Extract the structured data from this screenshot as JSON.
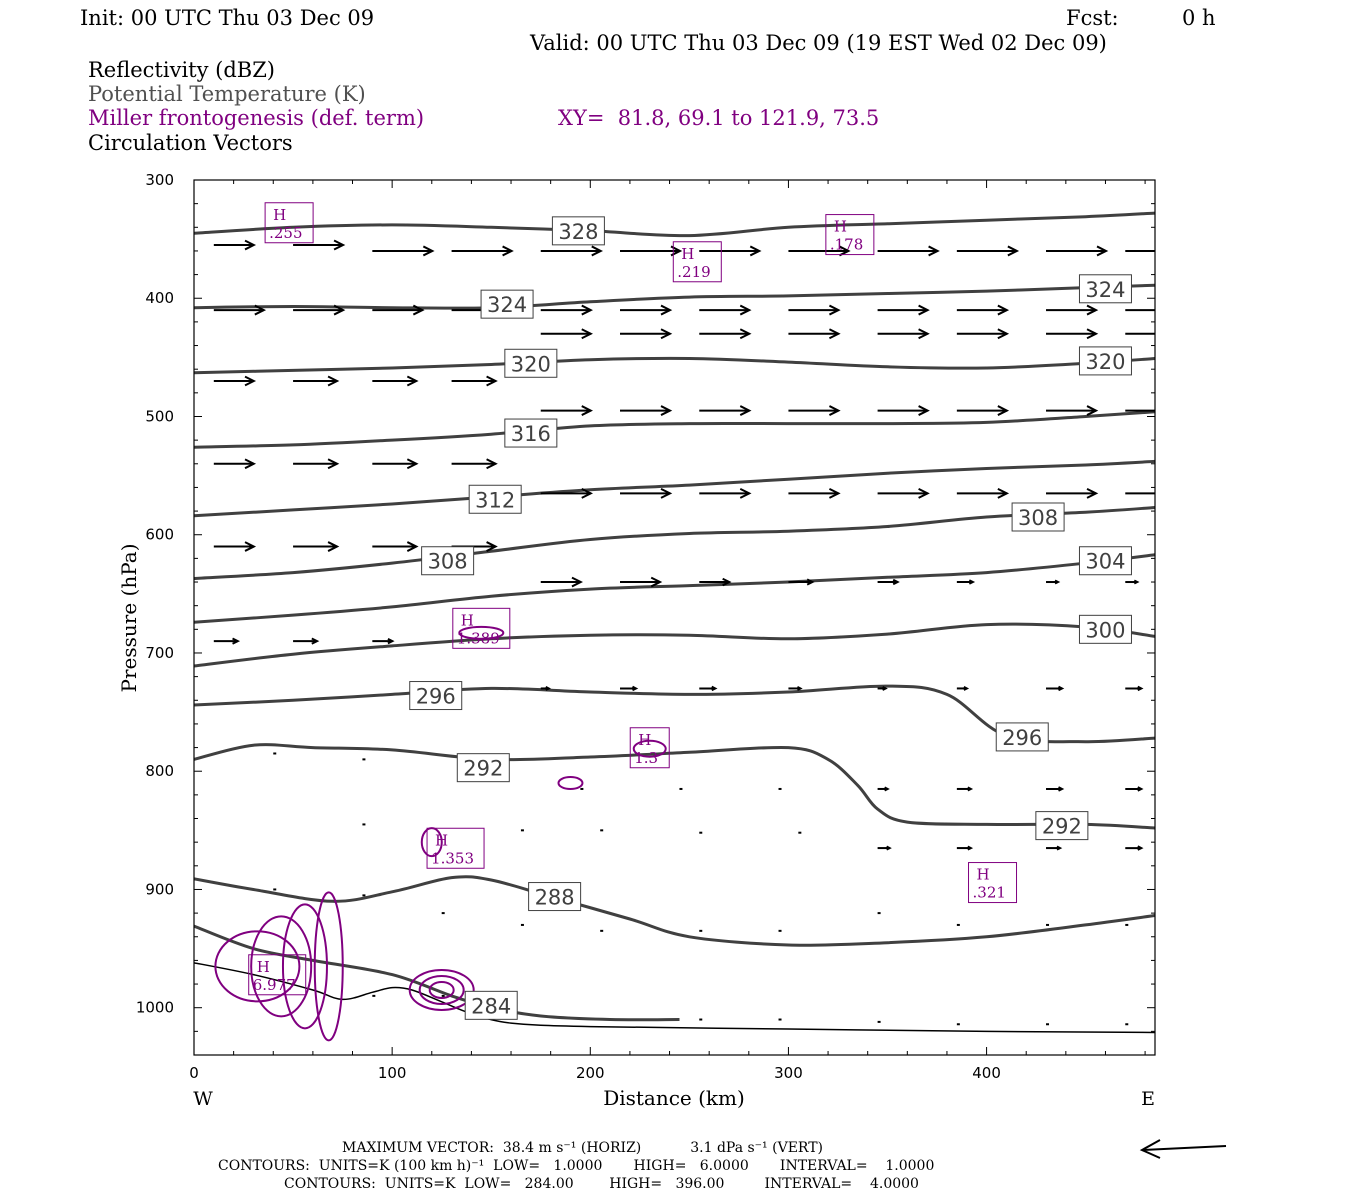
{
  "header": {
    "init": "Init: 00 UTC Thu 03 Dec 09",
    "fcst_label": "Fcst:",
    "fcst_value": "0 h",
    "valid": "Valid: 00 UTC Thu 03 Dec 09 (19 EST Wed 02 Dec 09)",
    "fields": [
      "Reflectivity (dBZ)",
      "Potential Temperature (K)",
      "Miller frontogenesis (def. term)",
      "Circulation Vectors"
    ],
    "xy": "XY=  81.8, 69.1 to 121.9, 73.5"
  },
  "colors": {
    "theta": "#404040",
    "front": "#800080",
    "vector": "#000000",
    "axis": "#000000"
  },
  "chart_data": {
    "type": "line",
    "xlabel": "Distance (km)",
    "ylabel": "Pressure (hPa)",
    "xlim": [
      0,
      485
    ],
    "ylim": [
      1040,
      300
    ],
    "x_ticks": [
      "0",
      "100",
      "200",
      "300",
      "400"
    ],
    "y_ticks": [
      "300",
      "400",
      "500",
      "600",
      "700",
      "800",
      "900",
      "1000"
    ],
    "x_end_labels": {
      "left": "W",
      "right": "E"
    },
    "theta_contours": [
      {
        "label": "328",
        "x": [
          0,
          50,
          100,
          150,
          200,
          250,
          300,
          350,
          400,
          450,
          485
        ],
        "p": [
          345,
          340,
          338,
          340,
          343,
          347,
          340,
          337,
          334,
          331,
          328
        ],
        "label_at": [
          194,
          343
        ]
      },
      {
        "label": "324",
        "x": [
          0,
          50,
          100,
          150,
          200,
          250,
          300,
          350,
          400,
          450,
          485
        ],
        "p": [
          408,
          407,
          408,
          408,
          403,
          399,
          398,
          396,
          394,
          391,
          389
        ],
        "label_at": [
          158,
          405
        ]
      },
      {
        "label": "324",
        "x": [],
        "p": [],
        "label_at": [
          460,
          392
        ]
      },
      {
        "label": "320",
        "x": [
          0,
          50,
          100,
          150,
          200,
          250,
          300,
          350,
          400,
          450,
          485
        ],
        "p": [
          463,
          461,
          459,
          456,
          452,
          451,
          454,
          458,
          459,
          455,
          451
        ],
        "label_at": [
          170,
          455
        ]
      },
      {
        "label": "320",
        "x": [],
        "p": [],
        "label_at": [
          460,
          453
        ]
      },
      {
        "label": "316",
        "x": [
          0,
          50,
          100,
          150,
          200,
          250,
          300,
          350,
          400,
          450,
          485
        ],
        "p": [
          526,
          524,
          520,
          515,
          508,
          506,
          506,
          506,
          505,
          500,
          496
        ],
        "label_at": [
          170,
          514
        ]
      },
      {
        "label": "312",
        "x": [
          0,
          50,
          100,
          150,
          200,
          250,
          300,
          350,
          400,
          450,
          485
        ],
        "p": [
          584,
          579,
          574,
          568,
          562,
          558,
          553,
          548,
          544,
          541,
          538
        ],
        "label_at": [
          152,
          570
        ]
      },
      {
        "label": "308",
        "x": [
          0,
          50,
          100,
          150,
          200,
          250,
          300,
          350,
          400,
          450,
          485
        ],
        "p": [
          637,
          632,
          624,
          614,
          604,
          599,
          597,
          593,
          585,
          581,
          577
        ],
        "label_at": [
          426,
          585
        ]
      },
      {
        "label": "308",
        "x": [],
        "p": [],
        "label_at": [
          128,
          622
        ]
      },
      {
        "label": "304",
        "x": [
          0,
          50,
          100,
          150,
          200,
          250,
          300,
          350,
          400,
          450,
          485
        ],
        "p": [
          674,
          668,
          661,
          652,
          646,
          643,
          640,
          636,
          632,
          624,
          617
        ],
        "label_at": [
          460,
          622
        ]
      },
      {
        "label": "300",
        "x": [
          0,
          50,
          100,
          150,
          200,
          250,
          300,
          350,
          400,
          450,
          485
        ],
        "p": [
          711,
          701,
          694,
          688,
          685,
          685,
          688,
          684,
          676,
          678,
          686
        ],
        "label_at": [
          460,
          680
        ]
      },
      {
        "label": "296",
        "x": [
          0,
          50,
          100,
          150,
          200,
          250,
          300,
          350,
          380,
          410,
          450,
          485
        ],
        "p": [
          744,
          740,
          735,
          730,
          733,
          735,
          733,
          728,
          735,
          770,
          775,
          772
        ],
        "label_at": [
          122,
          736
        ]
      },
      {
        "label": "296",
        "x": [],
        "p": [],
        "label_at": [
          418,
          771
        ]
      },
      {
        "label": "292",
        "x": [
          0,
          30,
          60,
          100,
          150,
          200,
          250,
          300,
          320,
          335,
          345,
          360,
          400,
          450,
          485
        ],
        "p": [
          790,
          778,
          780,
          782,
          790,
          788,
          784,
          780,
          790,
          812,
          832,
          843,
          845,
          845,
          848
        ],
        "label_at": [
          146,
          797
        ]
      },
      {
        "label": "292",
        "x": [],
        "p": [],
        "label_at": [
          438,
          846
        ]
      },
      {
        "label": "288",
        "x": [
          0,
          30,
          70,
          100,
          130,
          150,
          180,
          220,
          250,
          300,
          350,
          400,
          450,
          485
        ],
        "p": [
          891,
          900,
          910,
          902,
          890,
          892,
          906,
          925,
          940,
          947,
          945,
          940,
          930,
          922
        ],
        "label_at": [
          182,
          906
        ]
      },
      {
        "label": "284",
        "x": [
          0,
          30,
          60,
          100,
          130,
          150,
          175,
          210,
          245
        ],
        "p": [
          931,
          950,
          960,
          972,
          990,
          1000,
          1007,
          1010,
          1010
        ],
        "label_at": [
          150,
          998
        ]
      }
    ],
    "front_highs": [
      {
        "name": "H",
        "value": ".255",
        "x": 48,
        "p": 337
      },
      {
        "name": "H",
        "value": ".219",
        "x": 254,
        "p": 370
      },
      {
        "name": "H",
        "value": ".178",
        "x": 331,
        "p": 347
      },
      {
        "name": "H",
        "value": "1.389",
        "x": 145,
        "p": 680
      },
      {
        "name": "H",
        "value": "1.3",
        "x": 230,
        "p": 781
      },
      {
        "name": "H",
        "value": "1.353",
        "x": 132,
        "p": 866
      },
      {
        "name": "H",
        "value": ".321",
        "x": 403,
        "p": 895
      },
      {
        "name": "H",
        "value": "6.977",
        "x": 42,
        "p": 973
      }
    ],
    "terrain": {
      "x": [
        0,
        30,
        60,
        75,
        90,
        100,
        110,
        125,
        140,
        160,
        200,
        300,
        400,
        485
      ],
      "p": [
        962,
        972,
        985,
        993,
        987,
        983,
        985,
        995,
        1005,
        1013,
        1016,
        1018,
        1020,
        1021
      ]
    },
    "vectors": {
      "rows": [
        {
          "p": 355,
          "x": [
            10,
            50
          ],
          "u": [
            20,
            25
          ]
        },
        {
          "p": 360,
          "x": [
            90,
            130,
            175,
            215,
            255,
            300,
            345,
            385,
            430,
            470
          ],
          "u": [
            30,
            30,
            30,
            30,
            30,
            30,
            30,
            30,
            30,
            30
          ]
        },
        {
          "p": 410,
          "x": [
            10,
            50,
            90,
            130,
            175,
            215,
            255,
            300,
            345,
            385,
            430,
            470
          ],
          "u": [
            25,
            25,
            25,
            25,
            25,
            25,
            25,
            25,
            25,
            25,
            25,
            25
          ]
        },
        {
          "p": 430,
          "x": [
            175,
            215,
            255,
            300,
            345,
            385,
            430,
            470
          ],
          "u": [
            25,
            25,
            25,
            25,
            25,
            25,
            25,
            25
          ]
        },
        {
          "p": 470,
          "x": [
            10,
            50,
            90,
            130
          ],
          "u": [
            20,
            22,
            22,
            22
          ]
        },
        {
          "p": 495,
          "x": [
            175,
            215,
            255,
            300,
            345,
            385,
            430,
            470
          ],
          "u": [
            25,
            25,
            25,
            25,
            25,
            25,
            25,
            25
          ]
        },
        {
          "p": 540,
          "x": [
            10,
            50,
            90,
            130
          ],
          "u": [
            20,
            22,
            22,
            22
          ]
        },
        {
          "p": 565,
          "x": [
            175,
            215,
            255,
            300,
            345,
            385,
            430,
            470
          ],
          "u": [
            25,
            25,
            25,
            25,
            25,
            25,
            25,
            25
          ]
        },
        {
          "p": 610,
          "x": [
            10,
            50,
            90,
            130
          ],
          "u": [
            20,
            22,
            22,
            22
          ]
        },
        {
          "p": 640,
          "x": [
            175,
            215,
            255,
            300,
            345,
            385,
            430,
            470
          ],
          "u": [
            20,
            20,
            15,
            12,
            10,
            8,
            6,
            6
          ]
        },
        {
          "p": 690,
          "x": [
            10,
            50,
            90
          ],
          "u": [
            12,
            12,
            10
          ]
        },
        {
          "p": 730,
          "x": [
            175,
            215,
            255,
            300,
            345,
            385,
            430,
            470
          ],
          "u": [
            4,
            8,
            8,
            6,
            4,
            5,
            8,
            8
          ]
        },
        {
          "p": 815,
          "x": [
            345,
            385,
            430,
            470
          ],
          "u": [
            5,
            7,
            8,
            8
          ]
        },
        {
          "p": 865,
          "x": [
            345,
            385,
            430,
            470
          ],
          "u": [
            6,
            7,
            7,
            8
          ]
        }
      ]
    },
    "arrow_direction": "left"
  },
  "footer": {
    "line1": "MAXIMUM VECTOR:  38.4 m s⁻¹ (HORIZ)           3.1 dPa s⁻¹ (VERT)",
    "line2": "CONTOURS:  UNITS=K (100 km h)⁻¹  LOW=   1.0000       HIGH=   6.0000       INTERVAL=    1.0000",
    "line3": "CONTOURS:  UNITS=K  LOW=   284.00        HIGH=   396.00         INTERVAL=    4.0000"
  }
}
